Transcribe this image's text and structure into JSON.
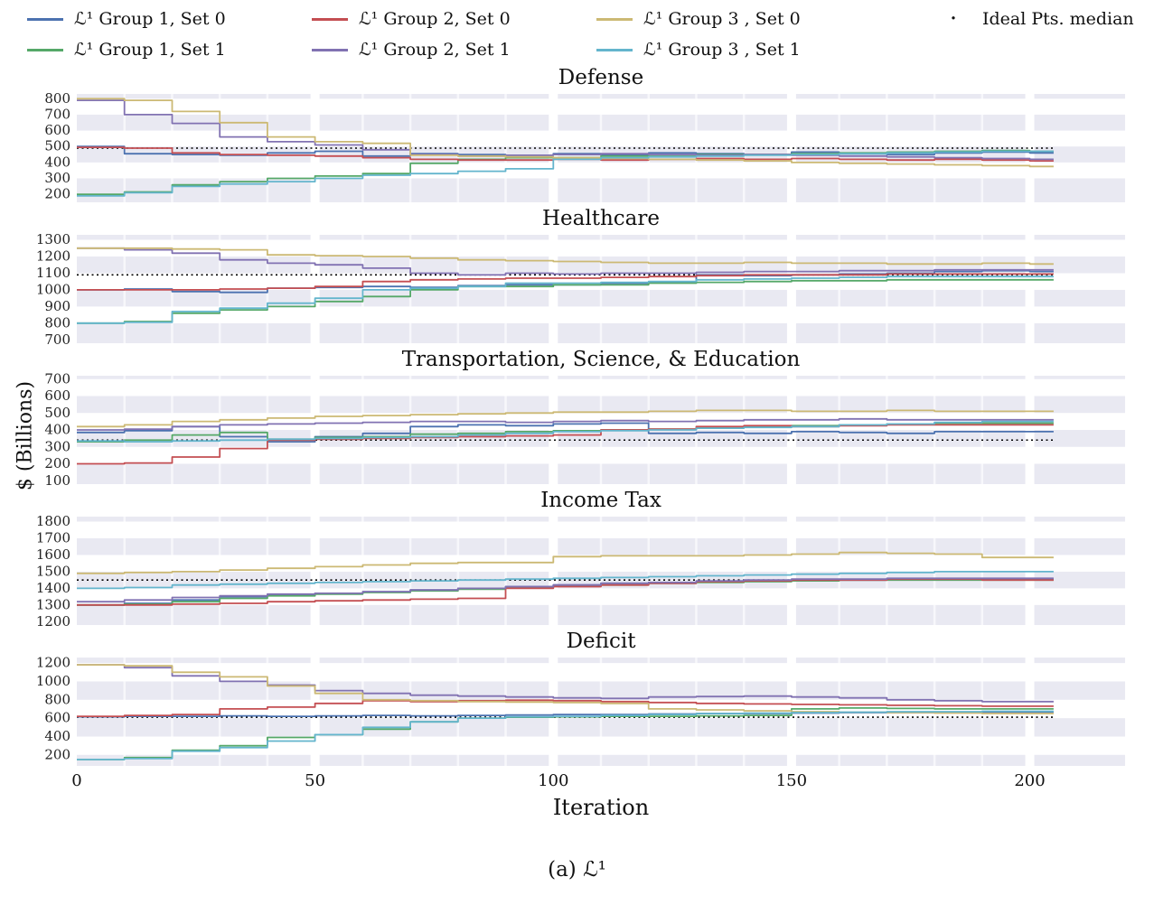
{
  "figure": {
    "caption": "(a) ℒ¹"
  },
  "legend": {
    "items": [
      {
        "label": "ℒ¹ Group 1, Set 0",
        "color": "#4c72b0"
      },
      {
        "label": "ℒ¹ Group 1, Set 1",
        "color": "#55a868"
      },
      {
        "label": "ℒ¹ Group 2, Set 0",
        "color": "#c44e52"
      },
      {
        "label": "ℒ¹ Group 2, Set 1",
        "color": "#8172b2"
      },
      {
        "label": "ℒ¹ Group 3 , Set 0",
        "color": "#ccb974"
      },
      {
        "label": "ℒ¹ Group 3 , Set 1",
        "color": "#64b5cd"
      }
    ],
    "ideal": {
      "label": "Ideal Pts. median",
      "color": "#000000",
      "marker": "·"
    }
  },
  "axes": {
    "xlabel": "Iteration",
    "ylabel": "$ (Billions)",
    "x_ticks": [
      0,
      50,
      100,
      150,
      200
    ],
    "x_max": 220
  },
  "chart_data": [
    {
      "type": "line",
      "title": "Defense",
      "ylim": [
        150,
        830
      ],
      "yticks": [
        800,
        700,
        600,
        500,
        400,
        300,
        200
      ],
      "ideal_median": 490,
      "x": [
        0,
        10,
        20,
        30,
        40,
        50,
        60,
        70,
        80,
        90,
        100,
        110,
        120,
        130,
        140,
        150,
        160,
        170,
        180,
        190,
        200
      ],
      "series": [
        {
          "name": "ℒ¹ Group 1, Set 0",
          "color": "#4c72b0",
          "values": [
            500,
            455,
            450,
            445,
            460,
            470,
            440,
            455,
            450,
            445,
            455,
            450,
            460,
            455,
            450,
            465,
            455,
            450,
            460,
            465,
            460
          ]
        },
        {
          "name": "ℒ¹ Group 1, Set 1",
          "color": "#55a868",
          "values": [
            200,
            215,
            260,
            280,
            300,
            315,
            330,
            395,
            420,
            430,
            430,
            440,
            445,
            450,
            450,
            455,
            460,
            465,
            470,
            475,
            470
          ]
        },
        {
          "name": "ℒ¹ Group 2, Set 0",
          "color": "#c44e52",
          "values": [
            495,
            490,
            460,
            450,
            445,
            440,
            430,
            420,
            415,
            415,
            420,
            415,
            420,
            425,
            420,
            425,
            420,
            415,
            420,
            415,
            410
          ]
        },
        {
          "name": "ℒ¹ Group 2, Set 1",
          "color": "#8172b2",
          "values": [
            790,
            700,
            645,
            560,
            530,
            510,
            480,
            450,
            440,
            445,
            450,
            455,
            450,
            445,
            450,
            445,
            440,
            435,
            430,
            425,
            420
          ]
        },
        {
          "name": "ℒ¹ Group 3 , Set 0",
          "color": "#ccb974",
          "values": [
            800,
            790,
            720,
            650,
            560,
            530,
            520,
            445,
            440,
            435,
            430,
            425,
            420,
            415,
            410,
            400,
            395,
            390,
            385,
            380,
            375
          ]
        },
        {
          "name": "ℒ¹ Group 3 , Set 1",
          "color": "#64b5cd",
          "values": [
            190,
            210,
            250,
            265,
            280,
            300,
            320,
            330,
            345,
            360,
            420,
            430,
            435,
            440,
            445,
            450,
            455,
            460,
            465,
            470,
            470
          ]
        }
      ]
    },
    {
      "type": "line",
      "title": "Healthcare",
      "ylim": [
        680,
        1330
      ],
      "yticks": [
        1300,
        1200,
        1100,
        1000,
        900,
        800,
        700
      ],
      "ideal_median": 1090,
      "x": [
        0,
        10,
        20,
        30,
        40,
        50,
        60,
        70,
        80,
        90,
        100,
        110,
        120,
        130,
        140,
        150,
        160,
        170,
        180,
        190,
        200
      ],
      "series": [
        {
          "name": "ℒ¹ Group 1, Set 0",
          "color": "#4c72b0",
          "values": [
            1000,
            1005,
            990,
            985,
            1010,
            1015,
            1020,
            1015,
            1025,
            1030,
            1030,
            1040,
            1045,
            1090,
            1085,
            1090,
            1095,
            1100,
            1110,
            1115,
            1110
          ]
        },
        {
          "name": "ℒ¹ Group 1, Set 1",
          "color": "#55a868",
          "values": [
            800,
            810,
            860,
            880,
            900,
            930,
            960,
            1000,
            1020,
            1020,
            1030,
            1030,
            1040,
            1045,
            1050,
            1055,
            1055,
            1060,
            1060,
            1060,
            1060
          ]
        },
        {
          "name": "ℒ¹ Group 2, Set 0",
          "color": "#c44e52",
          "values": [
            1000,
            1000,
            1000,
            1005,
            1010,
            1020,
            1050,
            1060,
            1065,
            1070,
            1070,
            1075,
            1080,
            1085,
            1090,
            1090,
            1090,
            1095,
            1095,
            1095,
            1095
          ]
        },
        {
          "name": "ℒ¹ Group 2, Set 1",
          "color": "#8172b2",
          "values": [
            1250,
            1240,
            1220,
            1180,
            1160,
            1150,
            1130,
            1100,
            1090,
            1100,
            1095,
            1100,
            1100,
            1105,
            1110,
            1110,
            1115,
            1115,
            1120,
            1120,
            1120
          ]
        },
        {
          "name": "ℒ¹ Group 3 , Set 0",
          "color": "#ccb974",
          "values": [
            1250,
            1250,
            1245,
            1240,
            1210,
            1205,
            1200,
            1190,
            1180,
            1175,
            1170,
            1165,
            1160,
            1160,
            1165,
            1160,
            1160,
            1155,
            1155,
            1160,
            1155
          ]
        },
        {
          "name": "ℒ¹ Group 3 , Set 1",
          "color": "#64b5cd",
          "values": [
            800,
            805,
            870,
            890,
            920,
            950,
            1000,
            1010,
            1020,
            1040,
            1040,
            1045,
            1050,
            1060,
            1065,
            1070,
            1075,
            1080,
            1080,
            1080,
            1080
          ]
        }
      ]
    },
    {
      "type": "line",
      "title": "Transportation, Science, & Education",
      "ylim": [
        80,
        720
      ],
      "yticks": [
        700,
        600,
        500,
        400,
        300,
        200,
        100
      ],
      "ideal_median": 340,
      "x": [
        0,
        10,
        20,
        30,
        40,
        50,
        60,
        70,
        80,
        90,
        100,
        110,
        120,
        130,
        140,
        150,
        160,
        170,
        180,
        190,
        200
      ],
      "series": [
        {
          "name": "ℒ¹ Group 1, Set 0",
          "color": "#4c72b0",
          "values": [
            385,
            395,
            420,
            360,
            330,
            360,
            380,
            420,
            430,
            425,
            435,
            440,
            380,
            385,
            380,
            390,
            385,
            380,
            390,
            390,
            390
          ]
        },
        {
          "name": "ℒ¹ Group 1, Set 1",
          "color": "#55a868",
          "values": [
            330,
            340,
            370,
            385,
            345,
            355,
            360,
            375,
            380,
            390,
            395,
            400,
            405,
            415,
            420,
            425,
            430,
            435,
            440,
            440,
            440
          ]
        },
        {
          "name": "ℒ¹ Group 2, Set 0",
          "color": "#c44e52",
          "values": [
            200,
            205,
            240,
            290,
            340,
            345,
            350,
            355,
            360,
            365,
            370,
            400,
            405,
            420,
            425,
            420,
            425,
            430,
            430,
            430,
            430
          ]
        },
        {
          "name": "ℒ¹ Group 2, Set 1",
          "color": "#8172b2",
          "values": [
            400,
            405,
            420,
            430,
            435,
            440,
            445,
            450,
            450,
            445,
            450,
            455,
            450,
            455,
            460,
            460,
            465,
            460,
            460,
            460,
            460
          ]
        },
        {
          "name": "ℒ¹ Group 3 , Set 0",
          "color": "#ccb974",
          "values": [
            420,
            430,
            450,
            460,
            470,
            480,
            485,
            490,
            495,
            500,
            505,
            505,
            510,
            515,
            515,
            510,
            510,
            515,
            510,
            510,
            510
          ]
        },
        {
          "name": "ℒ¹ Group 3 , Set 1",
          "color": "#64b5cd",
          "values": [
            335,
            330,
            335,
            340,
            345,
            350,
            355,
            360,
            370,
            380,
            390,
            395,
            400,
            410,
            415,
            420,
            430,
            435,
            445,
            450,
            450
          ]
        }
      ]
    },
    {
      "type": "line",
      "title": "Income Tax",
      "ylim": [
        1180,
        1830
      ],
      "yticks": [
        1800,
        1700,
        1600,
        1500,
        1400,
        1300,
        1200
      ],
      "ideal_median": 1450,
      "x": [
        0,
        10,
        20,
        30,
        40,
        50,
        60,
        70,
        80,
        90,
        100,
        110,
        120,
        130,
        140,
        150,
        160,
        170,
        180,
        190,
        200
      ],
      "series": [
        {
          "name": "ℒ¹ Group 1, Set 0",
          "color": "#4c72b0",
          "values": [
            1300,
            1310,
            1330,
            1350,
            1360,
            1370,
            1380,
            1390,
            1400,
            1410,
            1420,
            1430,
            1435,
            1440,
            1445,
            1450,
            1450,
            1455,
            1455,
            1455,
            1455
          ]
        },
        {
          "name": "ℒ¹ Group 1, Set 1",
          "color": "#55a868",
          "values": [
            1300,
            1305,
            1320,
            1340,
            1355,
            1365,
            1375,
            1385,
            1395,
            1405,
            1415,
            1420,
            1430,
            1435,
            1440,
            1445,
            1450,
            1450,
            1450,
            1450,
            1450
          ]
        },
        {
          "name": "ℒ¹ Group 2, Set 0",
          "color": "#c44e52",
          "values": [
            1300,
            1300,
            1305,
            1310,
            1320,
            1325,
            1330,
            1335,
            1340,
            1400,
            1410,
            1420,
            1430,
            1440,
            1445,
            1450,
            1450,
            1455,
            1455,
            1450,
            1450
          ]
        },
        {
          "name": "ℒ¹ Group 2, Set 1",
          "color": "#8172b2",
          "values": [
            1320,
            1330,
            1345,
            1355,
            1365,
            1370,
            1380,
            1390,
            1400,
            1410,
            1420,
            1430,
            1435,
            1445,
            1450,
            1455,
            1455,
            1460,
            1460,
            1460,
            1460
          ]
        },
        {
          "name": "ℒ¹ Group 3 , Set 0",
          "color": "#ccb974",
          "values": [
            1490,
            1495,
            1500,
            1510,
            1520,
            1530,
            1540,
            1550,
            1555,
            1555,
            1590,
            1595,
            1595,
            1595,
            1600,
            1605,
            1615,
            1610,
            1605,
            1585,
            1585
          ]
        },
        {
          "name": "ℒ¹ Group 3 , Set 1",
          "color": "#64b5cd",
          "values": [
            1400,
            1405,
            1420,
            1425,
            1430,
            1435,
            1440,
            1445,
            1450,
            1455,
            1460,
            1465,
            1470,
            1475,
            1480,
            1485,
            1490,
            1495,
            1500,
            1500,
            1500
          ]
        }
      ]
    },
    {
      "type": "line",
      "title": "Deficit",
      "ylim": [
        80,
        1260
      ],
      "yticks": [
        1200,
        1000,
        800,
        600,
        400,
        200
      ],
      "ideal_median": 610,
      "x": [
        0,
        10,
        20,
        30,
        40,
        50,
        60,
        70,
        80,
        90,
        100,
        110,
        120,
        130,
        140,
        150,
        160,
        170,
        180,
        190,
        200
      ],
      "series": [
        {
          "name": "ℒ¹ Group 1, Set 0",
          "color": "#4c72b0",
          "values": [
            615,
            620,
            620,
            625,
            620,
            625,
            630,
            625,
            630,
            635,
            640,
            640,
            645,
            650,
            650,
            655,
            660,
            660,
            665,
            665,
            665
          ]
        },
        {
          "name": "ℒ¹ Group 1, Set 1",
          "color": "#55a868",
          "values": [
            150,
            170,
            250,
            300,
            390,
            420,
            480,
            560,
            600,
            610,
            615,
            620,
            620,
            625,
            630,
            700,
            710,
            705,
            700,
            700,
            700
          ]
        },
        {
          "name": "ℒ¹ Group 2, Set 0",
          "color": "#c44e52",
          "values": [
            620,
            630,
            640,
            700,
            720,
            760,
            790,
            780,
            790,
            795,
            790,
            780,
            770,
            760,
            755,
            750,
            745,
            740,
            735,
            730,
            730
          ]
        },
        {
          "name": "ℒ¹ Group 2, Set 1",
          "color": "#8172b2",
          "values": [
            1180,
            1150,
            1060,
            1000,
            960,
            900,
            870,
            850,
            840,
            830,
            820,
            815,
            830,
            835,
            840,
            830,
            820,
            800,
            790,
            780,
            780
          ]
        },
        {
          "name": "ℒ¹ Group 3 , Set 0",
          "color": "#ccb974",
          "values": [
            1180,
            1170,
            1100,
            1050,
            950,
            870,
            800,
            790,
            780,
            775,
            770,
            760,
            700,
            690,
            680,
            670,
            665,
            660,
            655,
            650,
            650
          ]
        },
        {
          "name": "ℒ¹ Group 3 , Set 1",
          "color": "#64b5cd",
          "values": [
            150,
            160,
            240,
            280,
            350,
            420,
            500,
            560,
            600,
            615,
            620,
            630,
            640,
            650,
            655,
            660,
            665,
            670,
            670,
            675,
            675
          ]
        }
      ]
    }
  ]
}
